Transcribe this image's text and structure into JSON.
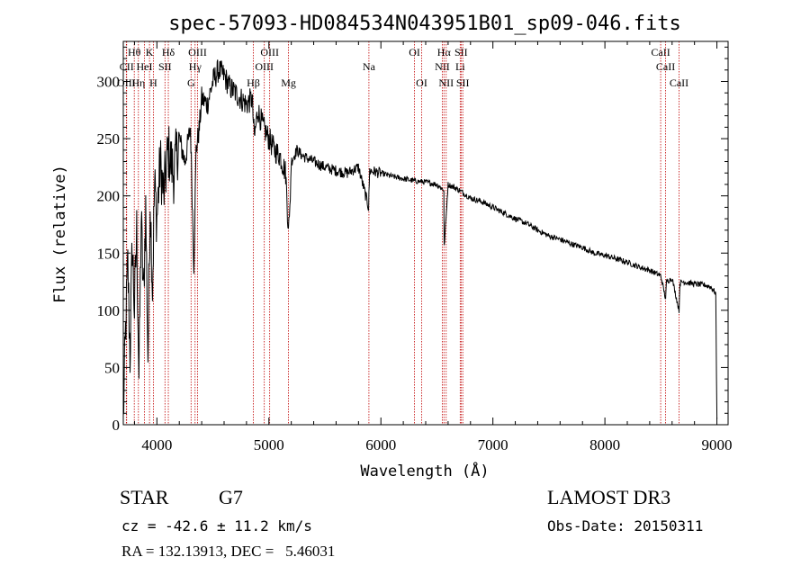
{
  "info": {
    "object_class": "STAR",
    "subclass": "G7",
    "survey": "LAMOST DR3",
    "redshift": "cz = -42.6 ± 11.2 km/s",
    "obs_date": "Obs-Date: 20150311",
    "coords": "RA = 132.13913, DEC =   5.46031"
  },
  "chart_data": {
    "type": "line",
    "title": "spec-57093-HD084534N043951B01_sp09-046.fits",
    "xlabel": "Wavelength (Å)",
    "ylabel": "Flux (relative)",
    "xlim": [
      3700,
      9100
    ],
    "ylim": [
      0,
      335
    ],
    "xticks": [
      4000,
      5000,
      6000,
      7000,
      8000,
      9000
    ],
    "yticks": [
      0,
      50,
      100,
      150,
      200,
      250,
      300
    ],
    "series": [
      {
        "name": "flux",
        "x": [
          3700,
          3720,
          3740,
          3760,
          3780,
          3800,
          3820,
          3840,
          3860,
          3880,
          3900,
          3920,
          3940,
          3960,
          3980,
          4000,
          4030,
          4060,
          4100,
          4150,
          4200,
          4250,
          4300,
          4330,
          4350,
          4380,
          4400,
          4450,
          4500,
          4550,
          4600,
          4650,
          4700,
          4750,
          4800,
          4850,
          4870,
          4900,
          4950,
          5000,
          5050,
          5100,
          5150,
          5170,
          5183,
          5200,
          5250,
          5300,
          5400,
          5500,
          5600,
          5700,
          5800,
          5890,
          5893,
          5900,
          6000,
          6100,
          6200,
          6300,
          6400,
          6500,
          6562,
          6565,
          6600,
          6700,
          6800,
          6900,
          7000,
          7100,
          7200,
          7300,
          7400,
          7500,
          7600,
          7700,
          7800,
          7900,
          8000,
          8100,
          8200,
          8300,
          8400,
          8500,
          8542,
          8550,
          8600,
          8662,
          8670,
          8700,
          8800,
          8900,
          8950,
          8990,
          9000
        ],
        "y": [
          5,
          80,
          140,
          60,
          160,
          100,
          170,
          40,
          180,
          110,
          190,
          60,
          200,
          120,
          210,
          180,
          230,
          200,
          240,
          220,
          250,
          230,
          260,
          140,
          240,
          260,
          285,
          280,
          300,
          310,
          305,
          295,
          290,
          285,
          280,
          285,
          250,
          275,
          260,
          250,
          240,
          235,
          220,
          180,
          175,
          230,
          240,
          235,
          230,
          225,
          222,
          220,
          225,
          190,
          200,
          222,
          220,
          217,
          215,
          213,
          212,
          210,
          205,
          155,
          210,
          205,
          198,
          195,
          190,
          185,
          180,
          176,
          170,
          165,
          162,
          158,
          155,
          150,
          148,
          145,
          142,
          138,
          135,
          130,
          110,
          125,
          128,
          100,
          124,
          125,
          123,
          122,
          120,
          115,
          5
        ]
      }
    ],
    "line_markers": [
      {
        "name": "Hθ",
        "wavelength": 3798,
        "row": 1
      },
      {
        "name": "CII",
        "wavelength": 3730,
        "row": 2
      },
      {
        "name": "OIII",
        "wavelength": 3727,
        "row": 3
      },
      {
        "name": "Hη",
        "wavelength": 3835,
        "row": 3
      },
      {
        "name": "HeI",
        "wavelength": 3889,
        "row": 2
      },
      {
        "name": "K",
        "wavelength": 3934,
        "row": 1
      },
      {
        "name": "H",
        "wavelength": 3969,
        "row": 3
      },
      {
        "name": "SII",
        "wavelength": 4072,
        "row": 2
      },
      {
        "name": "Hδ",
        "wavelength": 4102,
        "row": 1
      },
      {
        "name": "G",
        "wavelength": 4305,
        "row": 3
      },
      {
        "name": "Hγ",
        "wavelength": 4341,
        "row": 2
      },
      {
        "name": "OIII",
        "wavelength": 4363,
        "row": 1
      },
      {
        "name": "Hβ",
        "wavelength": 4861,
        "row": 3
      },
      {
        "name": "OIII",
        "wavelength": 4959,
        "row": 2
      },
      {
        "name": "OIII",
        "wavelength": 5007,
        "row": 1
      },
      {
        "name": "Mg",
        "wavelength": 5175,
        "row": 3
      },
      {
        "name": "Na",
        "wavelength": 5893,
        "row": 2
      },
      {
        "name": "OI",
        "wavelength": 6300,
        "row": 1
      },
      {
        "name": "OI",
        "wavelength": 6364,
        "row": 3
      },
      {
        "name": "NII",
        "wavelength": 6548,
        "row": 2
      },
      {
        "name": "Hα",
        "wavelength": 6563,
        "row": 1
      },
      {
        "name": "NII",
        "wavelength": 6583,
        "row": 3
      },
      {
        "name": "SII",
        "wavelength": 6716,
        "row": 1
      },
      {
        "name": "Li",
        "wavelength": 6708,
        "row": 2
      },
      {
        "name": "SII",
        "wavelength": 6731,
        "row": 3
      },
      {
        "name": "CaII",
        "wavelength": 8498,
        "row": 1
      },
      {
        "name": "CaII",
        "wavelength": 8542,
        "row": 2
      },
      {
        "name": "CaII",
        "wavelength": 8662,
        "row": 3
      }
    ],
    "colors": {
      "flux": "#000000",
      "markers": "#c00000"
    }
  }
}
